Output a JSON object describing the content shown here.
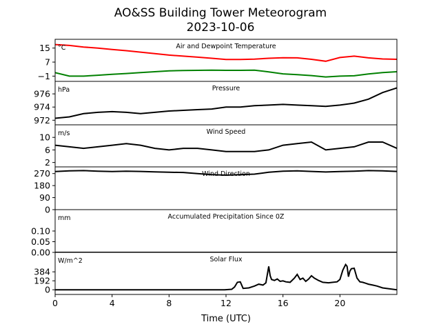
{
  "chart_data": {
    "type": "line",
    "title": "AO&SS Building Tower Meteorogram",
    "subtitle": "2023-10-06",
    "xlabel": "Time (UTC)",
    "xlim": [
      0,
      24
    ],
    "xticks": [
      0,
      4,
      8,
      12,
      16,
      20
    ],
    "panels": [
      {
        "title": "Air and Dewpoint Temperature",
        "unit": "°C",
        "ylim": [
          -4,
          20
        ],
        "yticks": [
          -1,
          7,
          15
        ],
        "ytick_labels": [
          "−1",
          "7",
          "15"
        ],
        "series": [
          {
            "color": "#ff0000",
            "x": [
              0,
              1,
              2,
              3,
              4,
              5,
              6,
              7,
              8,
              9,
              10,
              11,
              12,
              13,
              14,
              15,
              16,
              17,
              18,
              19,
              20,
              21,
              22,
              23,
              24
            ],
            "y": [
              17,
              16.5,
              15.6,
              15,
              14.2,
              13.5,
              12.7,
              11.8,
              11,
              10.4,
              9.8,
              9.2,
              8.5,
              8.5,
              8.7,
              9.2,
              9.5,
              9.4,
              8.6,
              7.5,
              9.6,
              10.4,
              9.4,
              8.8,
              8.6
            ]
          },
          {
            "color": "#008000",
            "x": [
              0,
              1,
              2,
              3,
              4,
              5,
              6,
              7,
              8,
              9,
              10,
              11,
              12,
              13,
              14,
              15,
              16,
              17,
              18,
              19,
              20,
              21,
              22,
              23,
              24
            ],
            "y": [
              1,
              -1,
              -1,
              -0.5,
              0,
              0.5,
              1,
              1.5,
              2,
              2.2,
              2.3,
              2.4,
              2.3,
              2.3,
              2.4,
              1.4,
              0.3,
              -0.2,
              -0.7,
              -1.5,
              -1,
              -0.8,
              0.2,
              1,
              1.5
            ]
          }
        ]
      },
      {
        "title": "Pressure",
        "unit": "hPa",
        "ylim": [
          971.3,
          977.9
        ],
        "yticks": [
          972,
          974,
          976
        ],
        "ytick_labels": [
          "972",
          "974",
          "976"
        ],
        "series": [
          {
            "color": "#000000",
            "x": [
              0,
              1,
              2,
              3,
              4,
              5,
              6,
              7,
              8,
              9,
              10,
              11,
              12,
              13,
              14,
              15,
              16,
              17,
              18,
              19,
              20,
              21,
              22,
              23,
              24
            ],
            "y": [
              972.3,
              972.5,
              973,
              973.2,
              973.3,
              973.2,
              973,
              973.2,
              973.4,
              973.5,
              973.6,
              973.7,
              974,
              974,
              974.2,
              974.3,
              974.4,
              974.3,
              974.2,
              974.1,
              974.3,
              974.6,
              975.2,
              976.2,
              976.9
            ]
          }
        ]
      },
      {
        "title": "Wind Speed",
        "unit": "m/s",
        "ylim": [
          0.6,
          14
        ],
        "yticks": [
          2,
          6,
          10
        ],
        "ytick_labels": [
          "2",
          "6",
          "10"
        ],
        "series": [
          {
            "color": "#000000",
            "x": [
              0,
              1,
              2,
              3,
              4,
              5,
              6,
              7,
              8,
              9,
              10,
              11,
              12,
              13,
              14,
              15,
              16,
              17,
              18,
              19,
              20,
              21,
              22,
              23,
              24
            ],
            "y": [
              7.5,
              7,
              6.5,
              7,
              7.5,
              8,
              7.5,
              6.5,
              6,
              6.5,
              6.5,
              6,
              5.5,
              5.5,
              5.5,
              6,
              7.5,
              8,
              8.5,
              6,
              6.5,
              7,
              8.5,
              8.5,
              6.5
            ]
          }
        ]
      },
      {
        "title": "Wind Direction",
        "unit": "",
        "ylim": [
          0,
          320
        ],
        "yticks": [
          0,
          90,
          180,
          270
        ],
        "ytick_labels": [
          "0",
          "90",
          "180",
          "270"
        ],
        "series": [
          {
            "color": "#000000",
            "x": [
              0,
              1,
              2,
              3,
              4,
              5,
              6,
              7,
              8,
              9,
              10,
              11,
              12,
              13,
              14,
              15,
              16,
              17,
              18,
              19,
              20,
              21,
              22,
              23,
              24
            ],
            "y": [
              285,
              290,
              292,
              288,
              285,
              288,
              286,
              283,
              280,
              278,
              270,
              262,
              258,
              262,
              266,
              280,
              288,
              290,
              286,
              282,
              285,
              288,
              292,
              290,
              286
            ]
          }
        ]
      },
      {
        "title": "Accumulated Precipitation Since 0Z",
        "unit": "mm",
        "ylim": [
          0,
          0.2
        ],
        "yticks": [
          0.0,
          0.05,
          0.1
        ],
        "ytick_labels": [
          "0.00",
          "0.05",
          "0.10"
        ],
        "series": [
          {
            "color": "#000000",
            "x": [
              0,
              24
            ],
            "y": [
              0,
              0
            ]
          }
        ]
      },
      {
        "title": "Solar Flux",
        "unit": "W/m^2",
        "ylim": [
          -100,
          800
        ],
        "yticks": [
          0,
          192,
          384
        ],
        "ytick_labels": [
          "0",
          "192",
          "384"
        ],
        "series": [
          {
            "color": "#000000",
            "x": [
              0,
              11.9,
              12.4,
              12.6,
              12.8,
              13.0,
              13.2,
              13.6,
              14,
              14.3,
              14.6,
              14.8,
              15.0,
              15.1,
              15.2,
              15.4,
              15.6,
              15.8,
              16,
              16.2,
              16.5,
              16.8,
              17.0,
              17.2,
              17.4,
              17.6,
              17.8,
              18.0,
              18.2,
              18.5,
              18.8,
              19.2,
              19.5,
              19.8,
              20,
              20.2,
              20.4,
              20.5,
              20.6,
              20.7,
              20.8,
              21.0,
              21.2,
              21.4,
              21.6,
              21.8,
              22,
              22.3,
              22.6,
              23,
              24
            ],
            "y": [
              0,
              0,
              10,
              60,
              160,
              170,
              30,
              40,
              80,
              120,
              100,
              150,
              500,
              300,
              220,
              200,
              230,
              180,
              190,
              170,
              160,
              250,
              330,
              220,
              250,
              180,
              230,
              300,
              250,
              200,
              160,
              150,
              160,
              170,
              220,
              420,
              540,
              500,
              280,
              400,
              450,
              460,
              250,
              170,
              160,
              140,
              120,
              100,
              80,
              40,
              0
            ]
          }
        ]
      }
    ]
  }
}
